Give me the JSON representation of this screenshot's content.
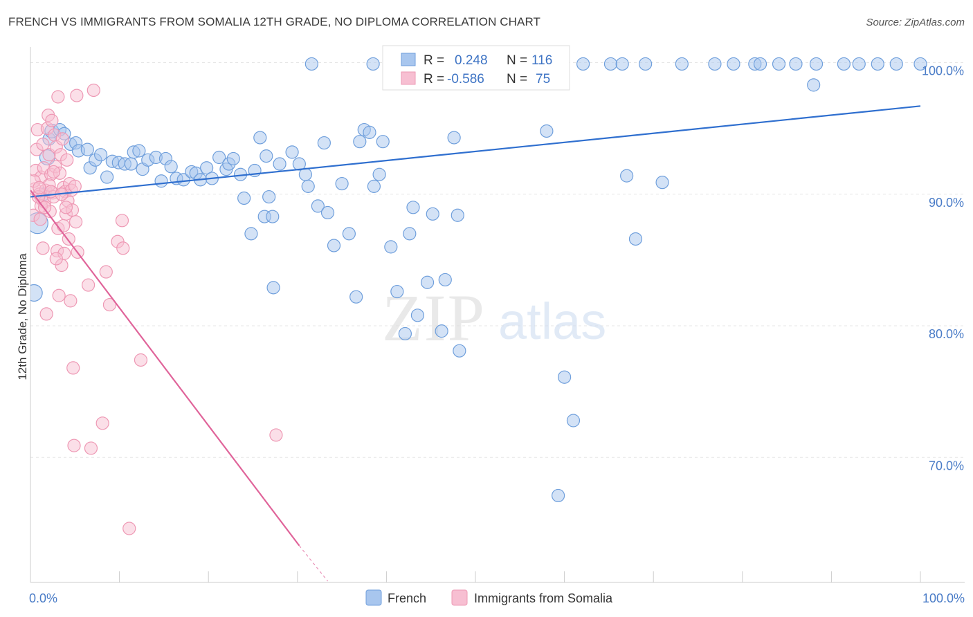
{
  "header": {
    "title": "FRENCH VS IMMIGRANTS FROM SOMALIA 12TH GRADE, NO DIPLOMA CORRELATION CHART",
    "source": "Source: ZipAtlas.com"
  },
  "watermark": {
    "zip": "ZIP",
    "atlas": "atlas"
  },
  "chart_data": {
    "type": "scatter",
    "xlabel": "",
    "ylabel": "12th Grade, No Diploma",
    "xlim": [
      0,
      100
    ],
    "ylim": [
      60.5,
      101.5
    ],
    "x_tick_labels": [
      {
        "value": 0,
        "label": "0.0%"
      },
      {
        "value": 100,
        "label": "100.0%"
      }
    ],
    "y_tick_labels": [
      {
        "value": 100,
        "label": "100.0%"
      },
      {
        "value": 90,
        "label": "90.0%"
      },
      {
        "value": 80,
        "label": "80.0%"
      },
      {
        "value": 70,
        "label": "70.0%"
      }
    ],
    "x_minor_ticks": [
      0,
      10,
      20,
      30,
      40,
      50,
      60,
      70,
      80,
      90,
      100
    ],
    "grid": true,
    "legend_position": "bottom-center",
    "stats_box": {
      "rows": [
        {
          "r_label": "R =",
          "r_value": "0.248",
          "n_label": "N =",
          "n_value": "116"
        },
        {
          "r_label": "R =",
          "r_value": "-0.586",
          "n_label": "N =",
          "n_value": "75"
        }
      ]
    },
    "series": [
      {
        "name": "French",
        "color": "#6f9fdc",
        "fill": "#a8c6ee",
        "line_color": "#2f6fcf",
        "trend": {
          "x0": 0,
          "y0": 89.8,
          "x1": 100,
          "y1": 96.7
        },
        "points": [
          [
            0.4,
            82.5
          ],
          [
            0.8,
            87.8
          ],
          [
            1.5,
            90.0
          ],
          [
            1.9,
            92.8
          ],
          [
            2.1,
            94.2
          ],
          [
            2.4,
            94.8
          ],
          [
            3.3,
            94.9
          ],
          [
            3.8,
            94.6
          ],
          [
            4.5,
            93.8
          ],
          [
            5.1,
            93.9
          ],
          [
            5.4,
            93.3
          ],
          [
            6.4,
            93.4
          ],
          [
            6.7,
            92.0
          ],
          [
            7.3,
            92.6
          ],
          [
            7.9,
            93.0
          ],
          [
            8.6,
            91.3
          ],
          [
            9.2,
            92.5
          ],
          [
            9.9,
            92.4
          ],
          [
            10.6,
            92.3
          ],
          [
            11.3,
            92.3
          ],
          [
            11.6,
            93.2
          ],
          [
            12.2,
            93.3
          ],
          [
            12.6,
            91.9
          ],
          [
            13.2,
            92.6
          ],
          [
            14.1,
            92.8
          ],
          [
            14.7,
            91.0
          ],
          [
            15.2,
            92.7
          ],
          [
            15.8,
            92.1
          ],
          [
            16.4,
            91.2
          ],
          [
            17.2,
            91.1
          ],
          [
            18.1,
            91.7
          ],
          [
            18.6,
            91.6
          ],
          [
            19.1,
            91.1
          ],
          [
            19.8,
            92.0
          ],
          [
            20.4,
            91.2
          ],
          [
            21.2,
            92.8
          ],
          [
            22.0,
            91.9
          ],
          [
            22.3,
            92.3
          ],
          [
            22.8,
            92.7
          ],
          [
            23.6,
            91.5
          ],
          [
            24.0,
            89.7
          ],
          [
            24.8,
            87.0
          ],
          [
            25.2,
            91.8
          ],
          [
            25.8,
            94.3
          ],
          [
            26.3,
            88.3
          ],
          [
            26.8,
            89.8
          ],
          [
            27.2,
            88.3
          ],
          [
            26.5,
            92.9
          ],
          [
            28.0,
            92.3
          ],
          [
            27.3,
            82.9
          ],
          [
            29.4,
            93.2
          ],
          [
            30.2,
            92.3
          ],
          [
            31.2,
            90.6
          ],
          [
            30.9,
            91.5
          ],
          [
            32.3,
            89.1
          ],
          [
            33.0,
            93.9
          ],
          [
            33.4,
            88.6
          ],
          [
            34.1,
            86.1
          ],
          [
            35.0,
            90.8
          ],
          [
            35.8,
            87.0
          ],
          [
            36.6,
            82.2
          ],
          [
            37.0,
            94.0
          ],
          [
            37.5,
            94.9
          ],
          [
            38.1,
            94.7
          ],
          [
            38.6,
            90.6
          ],
          [
            39.2,
            91.5
          ],
          [
            39.6,
            94.0
          ],
          [
            40.5,
            86.0
          ],
          [
            41.2,
            82.6
          ],
          [
            42.1,
            79.4
          ],
          [
            42.6,
            87.0
          ],
          [
            43.0,
            89.0
          ],
          [
            43.5,
            80.8
          ],
          [
            44.6,
            83.3
          ],
          [
            45.2,
            88.5
          ],
          [
            46.2,
            79.6
          ],
          [
            46.6,
            83.5
          ],
          [
            48.0,
            88.4
          ],
          [
            47.6,
            94.3
          ],
          [
            48.2,
            78.1
          ],
          [
            49.2,
            99.9
          ],
          [
            50.6,
            99.9
          ],
          [
            51.8,
            99.9
          ],
          [
            53.0,
            99.9
          ],
          [
            54.6,
            99.9
          ],
          [
            56.0,
            99.9
          ],
          [
            58.0,
            94.8
          ],
          [
            59.3,
            67.1
          ],
          [
            60.0,
            76.1
          ],
          [
            61.0,
            72.8
          ],
          [
            62.1,
            99.9
          ],
          [
            65.2,
            99.9
          ],
          [
            66.5,
            99.9
          ],
          [
            67.0,
            91.4
          ],
          [
            68.0,
            86.6
          ],
          [
            69.1,
            99.9
          ],
          [
            71.0,
            90.9
          ],
          [
            73.2,
            99.9
          ],
          [
            76.9,
            99.9
          ],
          [
            79.0,
            99.9
          ],
          [
            81.4,
            99.9
          ],
          [
            82.0,
            99.9
          ],
          [
            84.1,
            99.9
          ],
          [
            86.0,
            99.9
          ],
          [
            88.3,
            99.9
          ],
          [
            88.0,
            98.3
          ],
          [
            91.4,
            99.9
          ],
          [
            93.1,
            99.9
          ],
          [
            95.2,
            99.9
          ],
          [
            97.3,
            99.9
          ],
          [
            31.6,
            99.9
          ],
          [
            38.5,
            99.9
          ],
          [
            40.6,
            99.9
          ],
          [
            42.0,
            99.9
          ],
          [
            43.7,
            99.9
          ],
          [
            100.0,
            99.9
          ]
        ],
        "sizes": {
          "0": 24,
          "1": 30,
          "3": 22,
          "5": 20
        }
      },
      {
        "name": "Immigrants from Somalia",
        "color": "#ee98b4",
        "fill": "#f7bfd2",
        "line_color": "#e0649a",
        "trend": {
          "x0": 0,
          "y0": 90.3,
          "x1": 30.2,
          "y1": 63.3
        },
        "trend_dashed_to": {
          "x": 33.4,
          "y": 60.6
        },
        "points": [
          [
            0.3,
            88.4
          ],
          [
            0.5,
            90.4
          ],
          [
            0.6,
            91.8
          ],
          [
            0.7,
            93.4
          ],
          [
            0.8,
            94.9
          ],
          [
            1.0,
            90.0
          ],
          [
            1.1,
            88.1
          ],
          [
            1.2,
            91.3
          ],
          [
            1.3,
            89.6
          ],
          [
            1.4,
            85.9
          ],
          [
            1.5,
            92.0
          ],
          [
            1.6,
            89.4
          ],
          [
            1.7,
            90.3
          ],
          [
            1.8,
            80.9
          ],
          [
            1.9,
            95.0
          ],
          [
            2.0,
            96.0
          ],
          [
            2.1,
            93.0
          ],
          [
            2.2,
            88.7
          ],
          [
            2.3,
            91.5
          ],
          [
            2.4,
            95.6
          ],
          [
            2.5,
            90.1
          ],
          [
            2.6,
            89.8
          ],
          [
            2.7,
            94.5
          ],
          [
            2.8,
            92.1
          ],
          [
            2.9,
            93.6
          ],
          [
            3.0,
            85.7
          ],
          [
            3.1,
            87.4
          ],
          [
            3.2,
            82.3
          ],
          [
            3.3,
            91.6
          ],
          [
            3.4,
            93.0
          ],
          [
            3.5,
            84.6
          ],
          [
            3.6,
            94.2
          ],
          [
            3.7,
            90.5
          ],
          [
            3.8,
            85.5
          ],
          [
            3.9,
            90.2
          ],
          [
            4.0,
            88.5
          ],
          [
            4.1,
            92.6
          ],
          [
            4.2,
            89.5
          ],
          [
            4.3,
            86.6
          ],
          [
            4.4,
            90.8
          ],
          [
            4.5,
            81.9
          ],
          [
            4.6,
            90.3
          ],
          [
            4.7,
            88.8
          ],
          [
            4.8,
            76.8
          ],
          [
            4.9,
            70.9
          ],
          [
            5.0,
            90.6
          ],
          [
            5.1,
            87.9
          ],
          [
            5.3,
            85.6
          ],
          [
            3.1,
            97.4
          ],
          [
            5.2,
            97.5
          ],
          [
            6.5,
            83.1
          ],
          [
            6.8,
            70.7
          ],
          [
            7.1,
            97.9
          ],
          [
            8.1,
            72.6
          ],
          [
            8.5,
            84.1
          ],
          [
            8.9,
            81.6
          ],
          [
            9.8,
            86.4
          ],
          [
            10.3,
            88.0
          ],
          [
            10.4,
            85.9
          ],
          [
            11.1,
            64.6
          ],
          [
            12.4,
            77.4
          ],
          [
            27.6,
            71.7
          ],
          [
            1.2,
            89.1
          ],
          [
            2.1,
            90.7
          ],
          [
            0.9,
            89.8
          ],
          [
            1.6,
            89.0
          ],
          [
            2.3,
            90.2
          ],
          [
            3.5,
            90.0
          ],
          [
            4.0,
            89.0
          ],
          [
            0.4,
            91.0
          ],
          [
            2.6,
            91.7
          ],
          [
            1.4,
            93.8
          ],
          [
            2.9,
            85.1
          ],
          [
            3.7,
            87.6
          ],
          [
            1.0,
            90.5
          ]
        ],
        "sizes": {}
      }
    ]
  }
}
